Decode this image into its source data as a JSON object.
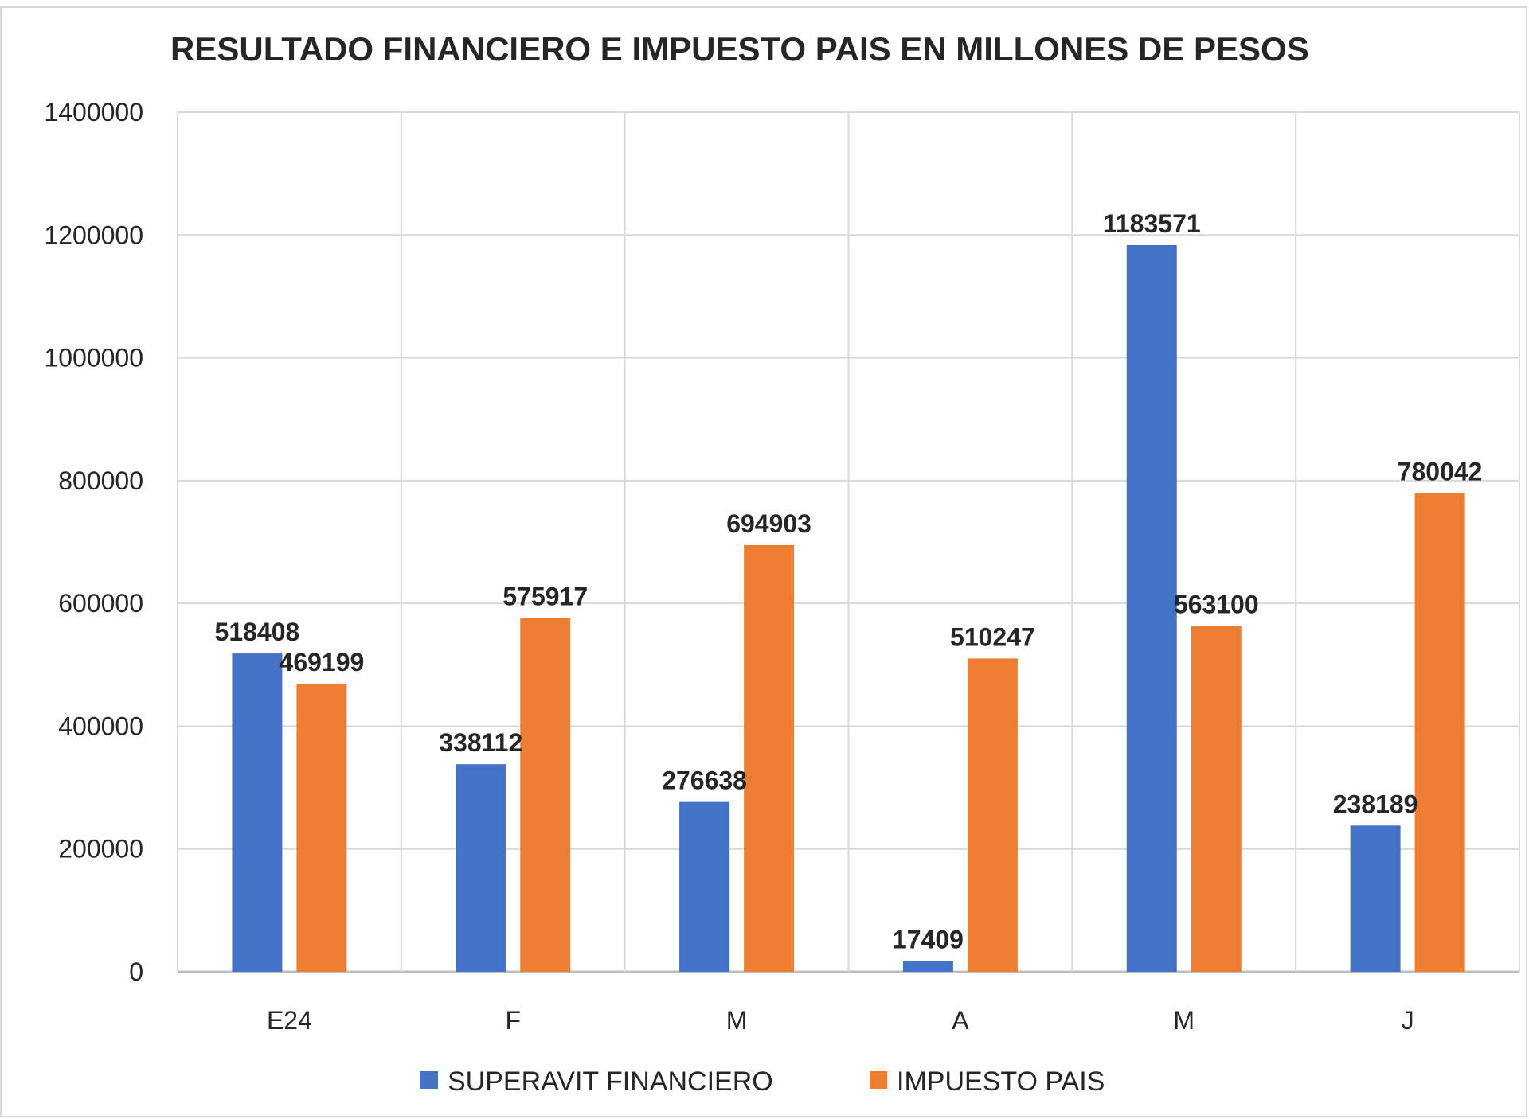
{
  "chart_data": {
    "type": "bar",
    "title": "RESULTADO FINANCIERO E IMPUESTO PAIS EN MILLONES DE PESOS",
    "xlabel": "",
    "ylabel": "",
    "categories": [
      "E24",
      "F",
      "M",
      "A",
      "M",
      "J"
    ],
    "series": [
      {
        "name": "SUPERAVIT FINANCIERO",
        "color": "#4472c4",
        "values": [
          518408,
          338112,
          276638,
          17409,
          1183571,
          238189
        ]
      },
      {
        "name": "IMPUESTO PAIS",
        "color": "#ed7d31",
        "values": [
          469199,
          575917,
          694903,
          510247,
          563100,
          780042
        ]
      }
    ],
    "ylim": [
      0,
      1400000
    ],
    "yticks": [
      0,
      200000,
      400000,
      600000,
      800000,
      1000000,
      1200000,
      1400000
    ],
    "ytick_labels": [
      "0",
      "200000",
      "400000",
      "600000",
      "800000",
      "1000000",
      "1200000",
      "1400000"
    ],
    "grid": true,
    "legend_position": "bottom"
  }
}
